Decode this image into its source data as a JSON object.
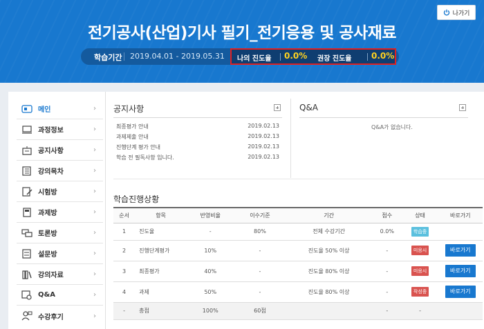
{
  "header": {
    "exit_label": "나가기",
    "title": "전기공사(산업)기사 필기_전기응용 및 공사재료",
    "period_label": "학습기간",
    "period_value": "2019.04.01 - 2019.05.31",
    "my_progress_label": "나의 진도율",
    "my_progress_value": "0.0%",
    "recommended_label": "권장 진도율",
    "recommended_value": "0.0%"
  },
  "sidebar": {
    "items": [
      {
        "label": "메인",
        "icon": "main-icon",
        "active": true
      },
      {
        "label": "과정정보",
        "icon": "course-info-icon"
      },
      {
        "label": "공지사항",
        "icon": "notice-icon"
      },
      {
        "label": "강의목차",
        "icon": "lecture-list-icon"
      },
      {
        "label": "시험방",
        "icon": "exam-icon"
      },
      {
        "label": "과제방",
        "icon": "assignment-icon"
      },
      {
        "label": "토론방",
        "icon": "discussion-icon"
      },
      {
        "label": "설문방",
        "icon": "survey-icon"
      },
      {
        "label": "강의자료",
        "icon": "materials-icon"
      },
      {
        "label": "Q&A",
        "icon": "qa-icon"
      },
      {
        "label": "수강후기",
        "icon": "review-icon"
      }
    ]
  },
  "notice": {
    "title": "공지사항",
    "items": [
      {
        "title": "최종평가 안내",
        "date": "2019.02.13"
      },
      {
        "title": "과제제출 안내",
        "date": "2019.02.13"
      },
      {
        "title": "진행단계 평가 안내",
        "date": "2019.02.13"
      },
      {
        "title": "학습 전 필독사항 입니다.",
        "date": "2019.02.13"
      }
    ]
  },
  "qa": {
    "title": "Q&A",
    "empty_text": "Q&A가 없습니다."
  },
  "progress": {
    "title": "학습진행상황",
    "columns": [
      "순서",
      "항목",
      "반영비율",
      "이수기준",
      "기간",
      "점수",
      "상태",
      "바로가기"
    ],
    "rows": [
      {
        "no": "1",
        "item": "진도율",
        "ratio": "-",
        "criteria": "80%",
        "period": "전체 수강기간",
        "score": "0.0%",
        "status": "학습중",
        "status_color": "#5bc0de",
        "goto": ""
      },
      {
        "no": "2",
        "item": "진행단계평가",
        "ratio": "10%",
        "criteria": "-",
        "period": "진도율 50% 이상",
        "score": "-",
        "status": "미응시",
        "status_color": "#d9534f",
        "goto": "바로가기"
      },
      {
        "no": "3",
        "item": "최종평가",
        "ratio": "40%",
        "criteria": "-",
        "period": "진도율 80% 이상",
        "score": "-",
        "status": "미응시",
        "status_color": "#d9534f",
        "goto": "바로가기"
      },
      {
        "no": "4",
        "item": "과제",
        "ratio": "50%",
        "criteria": "-",
        "period": "진도율 80% 이상",
        "score": "-",
        "status": "작성중",
        "status_color": "#d9534f",
        "goto": "바로가기"
      }
    ],
    "total": {
      "no": "-",
      "item": "총점",
      "ratio": "100%",
      "criteria": "60점",
      "period": "",
      "score": "-",
      "status": "-"
    }
  }
}
